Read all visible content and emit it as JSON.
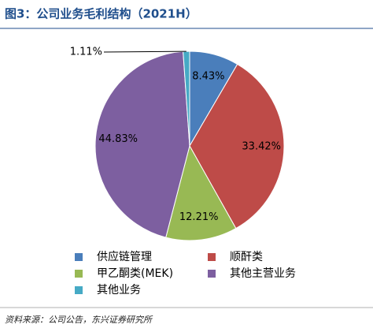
{
  "chart_data": {
    "type": "pie",
    "title": "图3：公司业务毛利结构（2021H）",
    "categories": [
      "供应链管理",
      "顺酐类",
      "甲乙酮类(MEK)",
      "其他主营业务",
      "其他业务"
    ],
    "values": [
      8.43,
      33.42,
      12.21,
      44.83,
      1.11
    ],
    "value_labels": [
      "8.43%",
      "33.42%",
      "12.21%",
      "44.83%",
      "1.11%"
    ],
    "colors": [
      "#4a7ebb",
      "#be4b48",
      "#98b954",
      "#7d5fa0",
      "#46aac5"
    ],
    "source": "资料来源：公司公告，东兴证券研究所"
  }
}
